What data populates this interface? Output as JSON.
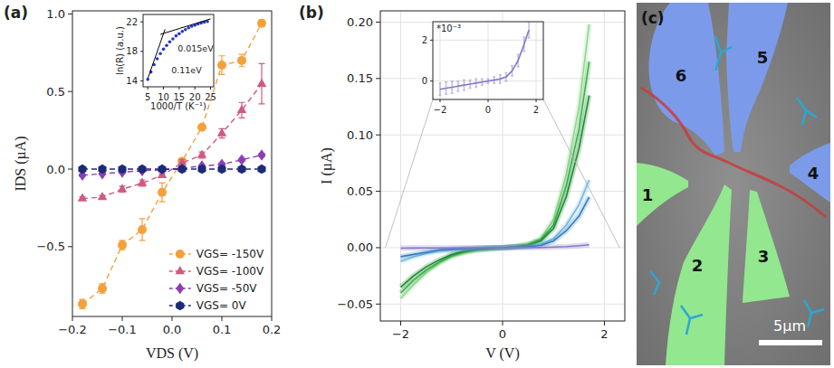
{
  "chart_data": [
    {
      "type": "line",
      "panel_label": "(a)",
      "x_label": "VDS (V)",
      "y_label": "IDS (µA)",
      "x": [
        -0.18,
        -0.14,
        -0.1,
        -0.06,
        -0.02,
        0.02,
        0.06,
        0.1,
        0.14,
        0.18
      ],
      "xlim": [
        -0.2,
        0.2
      ],
      "xticks": [
        {
          "value": -0.2,
          "label": "−0.2"
        },
        {
          "value": -0.1,
          "label": "−0.1"
        },
        {
          "value": 0,
          "label": "0.0"
        },
        0.1,
        0.2
      ],
      "ylim": [
        -0.95,
        1.02
      ],
      "yticks": [
        {
          "value": -0.5,
          "label": "−0.5"
        },
        {
          "value": 0,
          "label": "0.0"
        },
        0.5,
        {
          "value": 1,
          "label": "1.0"
        }
      ],
      "grid": false,
      "legend": "lower right",
      "line_style": "dashed",
      "series": [
        {
          "name": "VGS= -150V",
          "color": "#f5a03a",
          "marker": "circle",
          "values": [
            -0.87,
            -0.77,
            -0.49,
            -0.39,
            -0.15,
            0.05,
            0.27,
            0.67,
            0.7,
            0.94
          ],
          "errors": [
            0.03,
            0.03,
            0.03,
            0.07,
            0.06,
            0.02,
            0.01,
            0.06,
            0.04,
            0.02
          ]
        },
        {
          "name": "VGS= -100V",
          "color": "#cf5a83",
          "marker": "triangle",
          "values": [
            -0.19,
            -0.18,
            -0.13,
            -0.09,
            -0.04,
            0.04,
            0.09,
            0.23,
            0.38,
            0.55
          ],
          "errors": [
            0.01,
            0.01,
            0.02,
            0.02,
            0.01,
            0.02,
            0.02,
            0.03,
            0.05,
            0.13
          ]
        },
        {
          "name": "VGS= -50V",
          "color": "#8c3fb4",
          "marker": "diamond",
          "values": [
            -0.04,
            -0.03,
            -0.02,
            -0.01,
            -0.005,
            0.005,
            0.02,
            0.03,
            0.06,
            0.09
          ],
          "errors": [
            0.005,
            0.005,
            0.005,
            0.005,
            0.005,
            0.005,
            0.005,
            0.01,
            0.01,
            0.01
          ]
        },
        {
          "name": "VGS= 0V",
          "color": "#1c2a7a",
          "marker": "hexagon",
          "values": [
            0,
            0,
            0,
            0,
            0,
            0,
            0,
            0,
            0,
            0
          ],
          "errors": [
            0.003,
            0.003,
            0.003,
            0.003,
            0.003,
            0.003,
            0.003,
            0.003,
            0.003,
            0.003
          ]
        }
      ],
      "inset": {
        "type": "scatter",
        "x_label": "1000/T (K⁻¹)",
        "y_label": "ln(R) (a.u.)",
        "x": [
          5,
          6,
          7,
          8,
          9,
          10,
          11,
          12,
          13,
          14,
          15,
          16,
          17,
          18,
          19,
          20,
          21,
          22,
          23,
          24
        ],
        "xlim": [
          3.5,
          26
        ],
        "xticks": [
          5,
          10,
          15,
          20,
          25
        ],
        "ylim": [
          13.2,
          23
        ],
        "yticks": [
          14,
          18,
          22
        ],
        "grid": false,
        "series": [
          {
            "color": "#2538c8",
            "marker": "circle",
            "values": [
              14.2,
              15.2,
              16.2,
              17.0,
              17.7,
              18.3,
              18.8,
              19.3,
              19.7,
              20.1,
              20.4,
              20.7,
              20.95,
              21.2,
              21.4,
              21.55,
              21.7,
              21.85,
              21.95,
              22.05
            ]
          },
          {
            "type": "line",
            "color": "#000000",
            "x": [
              5,
              10.5
            ],
            "values": [
              14.3,
              21.0
            ]
          },
          {
            "type": "line",
            "color": "#000000",
            "x": [
              9,
              25
            ],
            "values": [
              20.3,
              22.4
            ]
          }
        ],
        "annotations": [
          {
            "text": "0.015eV",
            "x": 14.5,
            "y": 18.0
          },
          {
            "text": "0.11eV",
            "x": 12.5,
            "y": 15.0
          }
        ]
      }
    },
    {
      "type": "line",
      "panel_label": "(b)",
      "x_label": "V (V)",
      "y_label": "I (µA)",
      "x": [
        -2,
        -1.75,
        -1.5,
        -1.25,
        -1,
        -0.75,
        -0.5,
        -0.25,
        0,
        0.25,
        0.5,
        0.75,
        1,
        1.25,
        1.5,
        1.7
      ],
      "xlim": [
        -2.4,
        2.4
      ],
      "xticks": [
        {
          "value": -2,
          "label": "−2"
        },
        0,
        2
      ],
      "ylim": [
        -0.065,
        0.21
      ],
      "yticks": [
        {
          "value": -0.05,
          "label": "−0.05"
        },
        {
          "value": 0,
          "label": "0.00"
        },
        0.05,
        {
          "value": 0.1,
          "label": "0.10"
        },
        0.15,
        {
          "value": 0.2,
          "label": "0.20"
        }
      ],
      "grid": true,
      "series": [
        {
          "color": "#8fd68f",
          "values": [
            -0.045,
            -0.033,
            -0.022,
            -0.014,
            -0.008,
            -0.004,
            -0.002,
            -0.001,
            0,
            0.001,
            0.003,
            0.008,
            0.025,
            0.065,
            0.125,
            0.198
          ]
        },
        {
          "color": "#3cb04a",
          "values": [
            -0.04,
            -0.029,
            -0.02,
            -0.013,
            -0.007,
            -0.004,
            -0.002,
            -0.001,
            0,
            0.001,
            0.003,
            0.007,
            0.02,
            0.055,
            0.105,
            0.165
          ]
        },
        {
          "color": "#1f8a34",
          "values": [
            -0.035,
            -0.025,
            -0.017,
            -0.011,
            -0.006,
            -0.003,
            -0.0015,
            -0.0005,
            0,
            0.001,
            0.002,
            0.006,
            0.017,
            0.045,
            0.088,
            0.135
          ]
        },
        {
          "color": "#72b8e0",
          "values": [
            -0.012,
            -0.008,
            -0.005,
            -0.003,
            -0.002,
            -0.001,
            -0.0005,
            0,
            0,
            0.0005,
            0.001,
            0.003,
            0.008,
            0.02,
            0.038,
            0.06
          ]
        },
        {
          "color": "#2f7fc0",
          "values": [
            -0.008,
            -0.006,
            -0.004,
            -0.002,
            -0.0015,
            -0.001,
            -0.0005,
            0,
            0,
            0.0005,
            0.001,
            0.002,
            0.006,
            0.015,
            0.028,
            0.045
          ]
        },
        {
          "color": "#8878c8",
          "values": [
            -0.0004,
            -0.00035,
            -0.0003,
            -0.00025,
            -0.0002,
            -0.00015,
            -0.0001,
            -5e-05,
            0,
            5e-05,
            0.0001,
            0.0002,
            0.0005,
            0.001,
            0.0018,
            0.0025
          ]
        }
      ],
      "inset": {
        "type": "line",
        "multiplier_label": "*10⁻³",
        "x": [
          -2,
          -1.75,
          -1.5,
          -1.25,
          -1,
          -0.75,
          -0.5,
          -0.25,
          0,
          0.25,
          0.5,
          0.75,
          1,
          1.25,
          1.5,
          1.7
        ],
        "xlim": [
          -2.3,
          2.3
        ],
        "xticks": [
          {
            "value": -2,
            "label": "−2"
          },
          0,
          2
        ],
        "ylim": [
          -0.9,
          2.9
        ],
        "yticks": [
          0,
          2
        ],
        "grid": true,
        "series": [
          {
            "color": "#8878c8",
            "values": [
              -0.4,
              -0.35,
              -0.3,
              -0.25,
              -0.2,
              -0.15,
              -0.1,
              -0.05,
              0,
              0.05,
              0.1,
              0.2,
              0.5,
              1.0,
              1.8,
              2.5
            ],
            "errors": [
              0.3,
              0.3,
              0.3,
              0.25,
              0.25,
              0.2,
              0.2,
              0.15,
              0.1,
              0.15,
              0.2,
              0.2,
              0.25,
              0.3,
              0.35,
              0.4
            ]
          }
        ]
      }
    }
  ],
  "panel_c": {
    "panel_label": "(c)",
    "electrode_labels": [
      "1",
      "2",
      "3",
      "4",
      "5",
      "6"
    ],
    "scale_bar_label": "5µm"
  }
}
